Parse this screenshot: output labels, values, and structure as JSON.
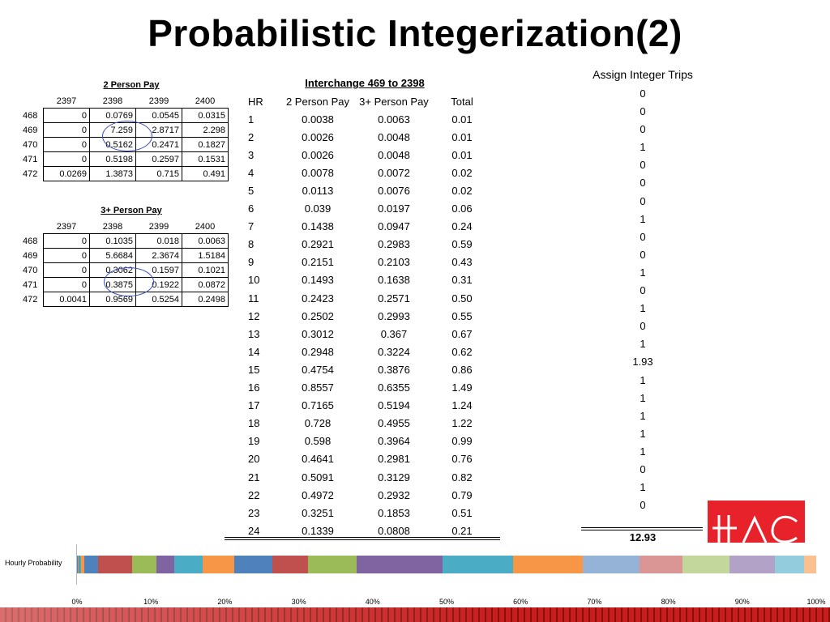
{
  "title": "Probabilistic Integerization(2)",
  "two_person_pay": {
    "title": "2 Person Pay",
    "columns": [
      "2397",
      "2398",
      "2399",
      "2400"
    ],
    "rows": [
      {
        "label": "468",
        "values": [
          "0",
          "0.0769",
          "0.0545",
          "0.0315"
        ]
      },
      {
        "label": "469",
        "values": [
          "0",
          "7.259",
          "2.8717",
          "2.298"
        ]
      },
      {
        "label": "470",
        "values": [
          "0",
          "0.5162",
          "0.2471",
          "0.1827"
        ]
      },
      {
        "label": "471",
        "values": [
          "0",
          "0.5198",
          "0.2597",
          "0.1531"
        ]
      },
      {
        "label": "472",
        "values": [
          "0.0269",
          "1.3873",
          "0.715",
          "0.491"
        ]
      }
    ]
  },
  "three_plus_person_pay": {
    "title": "3+ Person Pay",
    "columns": [
      "2397",
      "2398",
      "2399",
      "2400"
    ],
    "rows": [
      {
        "label": "468",
        "values": [
          "0",
          "0.1035",
          "0.018",
          "0.0063"
        ]
      },
      {
        "label": "469",
        "values": [
          "0",
          "5.6684",
          "2.3674",
          "1.5184"
        ]
      },
      {
        "label": "470",
        "values": [
          "0",
          "0.3062",
          "0.1597",
          "0.1021"
        ]
      },
      {
        "label": "471",
        "values": [
          "0",
          "0.3875",
          "0.1922",
          "0.0872"
        ]
      },
      {
        "label": "472",
        "values": [
          "0.0041",
          "0.9569",
          "0.5254",
          "0.2498"
        ]
      }
    ]
  },
  "interchange": {
    "title": "Interchange 469 to 2398",
    "headers": [
      "HR",
      "2 Person Pay",
      "3+ Person Pay",
      "Total"
    ],
    "rows": [
      [
        "1",
        "0.0038",
        "0.0063",
        "0.01"
      ],
      [
        "2",
        "0.0026",
        "0.0048",
        "0.01"
      ],
      [
        "3",
        "0.0026",
        "0.0048",
        "0.01"
      ],
      [
        "4",
        "0.0078",
        "0.0072",
        "0.02"
      ],
      [
        "5",
        "0.0113",
        "0.0076",
        "0.02"
      ],
      [
        "6",
        "0.039",
        "0.0197",
        "0.06"
      ],
      [
        "7",
        "0.1438",
        "0.0947",
        "0.24"
      ],
      [
        "8",
        "0.2921",
        "0.2983",
        "0.59"
      ],
      [
        "9",
        "0.2151",
        "0.2103",
        "0.43"
      ],
      [
        "10",
        "0.1493",
        "0.1638",
        "0.31"
      ],
      [
        "11",
        "0.2423",
        "0.2571",
        "0.50"
      ],
      [
        "12",
        "0.2502",
        "0.2993",
        "0.55"
      ],
      [
        "13",
        "0.3012",
        "0.367",
        "0.67"
      ],
      [
        "14",
        "0.2948",
        "0.3224",
        "0.62"
      ],
      [
        "15",
        "0.4754",
        "0.3876",
        "0.86"
      ],
      [
        "16",
        "0.8557",
        "0.6355",
        "1.49"
      ],
      [
        "17",
        "0.7165",
        "0.5194",
        "1.24"
      ],
      [
        "18",
        "0.728",
        "0.4955",
        "1.22"
      ],
      [
        "19",
        "0.598",
        "0.3964",
        "0.99"
      ],
      [
        "20",
        "0.4641",
        "0.2981",
        "0.76"
      ],
      [
        "21",
        "0.5091",
        "0.3129",
        "0.82"
      ],
      [
        "22",
        "0.4972",
        "0.2932",
        "0.79"
      ],
      [
        "23",
        "0.3251",
        "0.1853",
        "0.51"
      ],
      [
        "24",
        "0.1339",
        "0.0808",
        "0.21"
      ]
    ]
  },
  "assign": {
    "title": "Assign Integer Trips",
    "values": [
      "0",
      "0",
      "0",
      "1",
      "0",
      "0",
      "0",
      "1",
      "0",
      "0",
      "1",
      "0",
      "1",
      "0",
      "1",
      "1.93",
      "1",
      "1",
      "1",
      "1",
      "1",
      "0",
      "1",
      "0"
    ],
    "total": "12.93"
  },
  "hourly_bar": {
    "label": "Hourly Probability",
    "ticks": [
      "0%",
      "10%",
      "20%",
      "30%",
      "40%",
      "50%",
      "60%",
      "70%",
      "80%",
      "90%",
      "100%"
    ],
    "segments": [
      {
        "value": 0.077,
        "color": "#4f81bd"
      },
      {
        "value": 0.077,
        "color": "#c0504d"
      },
      {
        "value": 0.077,
        "color": "#9bbb59"
      },
      {
        "value": 0.155,
        "color": "#8064a2"
      },
      {
        "value": 0.155,
        "color": "#4bacc6"
      },
      {
        "value": 0.464,
        "color": "#f79646"
      },
      {
        "value": 1.856,
        "color": "#4f81bd"
      },
      {
        "value": 4.563,
        "color": "#c0504d"
      },
      {
        "value": 3.325,
        "color": "#9bbb59"
      },
      {
        "value": 2.398,
        "color": "#8064a2"
      },
      {
        "value": 3.867,
        "color": "#4bacc6"
      },
      {
        "value": 4.254,
        "color": "#f79646"
      },
      {
        "value": 5.182,
        "color": "#4f81bd"
      },
      {
        "value": 4.795,
        "color": "#c0504d"
      },
      {
        "value": 6.651,
        "color": "#9bbb59"
      },
      {
        "value": 11.524,
        "color": "#8064a2"
      },
      {
        "value": 9.59,
        "color": "#4bacc6"
      },
      {
        "value": 9.436,
        "color": "#f79646"
      },
      {
        "value": 7.657,
        "color": "#95b3d7"
      },
      {
        "value": 5.878,
        "color": "#d99694"
      },
      {
        "value": 6.342,
        "color": "#c3d69b"
      },
      {
        "value": 6.11,
        "color": "#b2a2c7"
      },
      {
        "value": 3.944,
        "color": "#93cddd"
      },
      {
        "value": 1.624,
        "color": "#fac090"
      }
    ]
  }
}
